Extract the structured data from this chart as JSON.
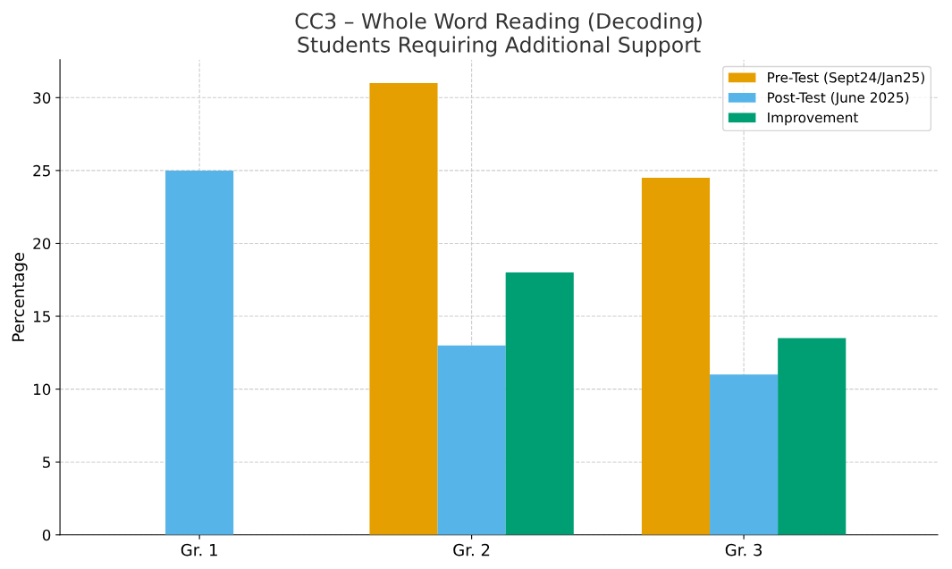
{
  "chart_data": {
    "type": "bar",
    "title": "CC3 – Whole Word Reading (Decoding)\nStudents Requiring Additional Support",
    "ylabel": "Percentage",
    "categories": [
      "Gr. 1",
      "Gr. 2",
      "Gr. 3"
    ],
    "series": [
      {
        "name": "Pre-Test (Sept24/Jan25)",
        "color": "#e69f00",
        "values": [
          null,
          31,
          24.5
        ]
      },
      {
        "name": "Post-Test (June 2025)",
        "color": "#56b4e9",
        "values": [
          25,
          13,
          11
        ]
      },
      {
        "name": "Improvement",
        "color": "#009e73",
        "values": [
          null,
          18,
          13.5
        ]
      }
    ],
    "ylim": [
      0,
      32.6
    ],
    "yticks": [
      0,
      5,
      10,
      15,
      20,
      25,
      30
    ],
    "grid": true,
    "legend": "top right"
  }
}
